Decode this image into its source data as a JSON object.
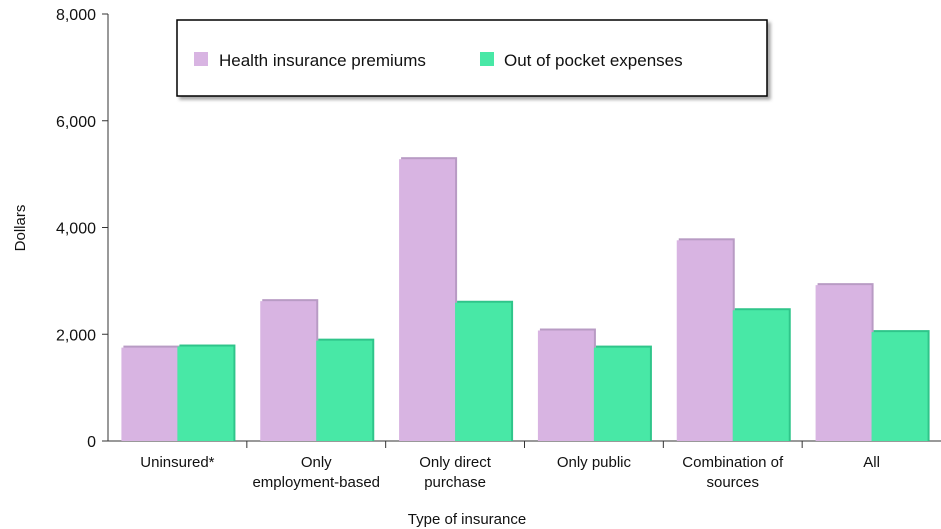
{
  "chart_data": {
    "type": "bar",
    "title": "",
    "xlabel": "Type of insurance",
    "ylabel": "Dollars",
    "ylim": [
      0,
      8000
    ],
    "yticks": [
      0,
      2000,
      4000,
      6000,
      8000
    ],
    "ytick_labels": [
      "0",
      "2,000",
      "4,000",
      "6,000",
      "8,000"
    ],
    "categories": [
      [
        "Uninsured*"
      ],
      [
        "Only",
        "employment-based"
      ],
      [
        "Only direct",
        "purchase"
      ],
      [
        "Only public"
      ],
      [
        "Combination of",
        "sources"
      ],
      [
        "All"
      ]
    ],
    "series": [
      {
        "name": "Health insurance premiums",
        "color": "#d8b4e2",
        "values": [
          1750,
          2620,
          5280,
          2070,
          3760,
          2920
        ]
      },
      {
        "name": "Out of pocket expenses",
        "color": "#48e8a6",
        "values": [
          1770,
          1880,
          2590,
          1750,
          2450,
          2040
        ]
      }
    ],
    "legend": {
      "placement": "top-center"
    },
    "grid": false
  }
}
